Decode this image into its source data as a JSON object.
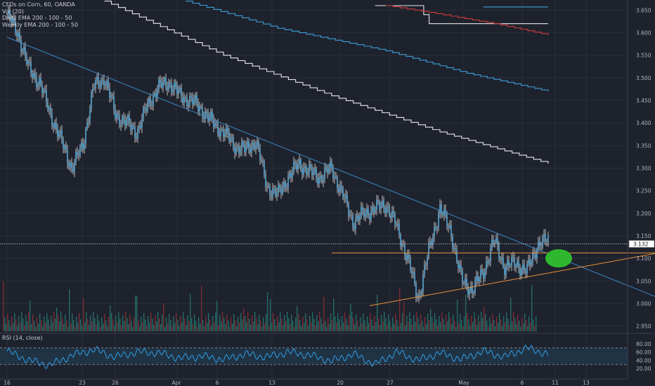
{
  "legend": {
    "symbol": "CFDs on Corn, 60, OANDA",
    "volume": "Vol (20)",
    "daily_ema": "Daily EMA 200 - 100 - 50",
    "weekly_ema": "Weekly EMA 200 - 100 - 50"
  },
  "rsi_legend": "RSI (14, close)",
  "colors": {
    "background": "#1e222d",
    "candle_body": "#5aa9d6",
    "candle_wick": "#e0e0e0",
    "trendline": "#3d88c2",
    "support": "#e8923a",
    "ema_white": "#e6e6e6",
    "ema_blue": "#3c9fd8",
    "ema_red": "#d43b3b",
    "marker": "#2fb72f",
    "rsi_line": "#2f9ee8",
    "rsi_band": "#20384a",
    "volume_up": "#26786e",
    "volume_down": "#8b2e35"
  },
  "chart_data": {
    "type": "line",
    "title": "CFDs on Corn, 60, OANDA",
    "x_tick_labels": [
      "16",
      "23",
      "26",
      "Apr",
      "6",
      "13",
      "20",
      "27",
      "May",
      "6",
      "11",
      "13"
    ],
    "y_tick_labels": [
      "3.650",
      "3.600",
      "3.550",
      "3.500",
      "3.450",
      "3.400",
      "3.350",
      "3.300",
      "3.250",
      "3.200",
      "3.150",
      "3.100",
      "3.050",
      "3.000",
      "2.950"
    ],
    "ylim": [
      2.94,
      3.66
    ],
    "last_price": "3.132",
    "price_series": {
      "name": "CFDs on Corn",
      "x": [
        0,
        2,
        4,
        6,
        8,
        10,
        12,
        14,
        16,
        18,
        20,
        22,
        24,
        26,
        28,
        30,
        32,
        34,
        36,
        38,
        40,
        42,
        44,
        46,
        48,
        50,
        52,
        54,
        56,
        58,
        60,
        62,
        64,
        66,
        68,
        70,
        72,
        74,
        76,
        78,
        80,
        82,
        84,
        86,
        88,
        90,
        92,
        94,
        96,
        98,
        100
      ],
      "values": [
        3.64,
        3.6,
        3.52,
        3.49,
        3.42,
        3.36,
        3.3,
        3.35,
        3.48,
        3.5,
        3.42,
        3.4,
        3.38,
        3.44,
        3.48,
        3.49,
        3.46,
        3.45,
        3.43,
        3.4,
        3.38,
        3.35,
        3.34,
        3.36,
        3.26,
        3.24,
        3.28,
        3.31,
        3.29,
        3.28,
        3.3,
        3.24,
        3.18,
        3.2,
        3.21,
        3.22,
        3.17,
        3.1,
        3.01,
        3.12,
        3.21,
        3.16,
        3.05,
        3.03,
        3.07,
        3.14,
        3.08,
        3.09,
        3.07,
        3.13,
        3.14
      ]
    },
    "trendline": {
      "name": "Downtrend line",
      "x": [
        0,
        123
      ],
      "values": [
        3.59,
        3.0
      ]
    },
    "support_line": {
      "name": "Rising support",
      "x": [
        67,
        124
      ],
      "values": [
        2.995,
        3.12
      ]
    },
    "resistance_line": {
      "name": "Horizontal level",
      "x": [
        60,
        124
      ],
      "values": [
        3.112,
        3.112
      ]
    },
    "ema_lines": [
      {
        "name": "EMA white",
        "color": "#e6e6e6",
        "x": [
          18,
          40,
          60,
          80,
          100
        ],
        "values": [
          3.67,
          3.55,
          3.46,
          3.38,
          3.31
        ]
      },
      {
        "name": "EMA blue",
        "color": "#3c9fd8",
        "x": [
          33,
          50,
          70,
          85,
          100
        ],
        "values": [
          3.67,
          3.61,
          3.56,
          3.51,
          3.47
        ]
      },
      {
        "name": "EMA white 2",
        "color": "#e6e6e6",
        "x": [
          68,
          76,
          78,
          100
        ],
        "values": [
          3.66,
          3.66,
          3.62,
          3.62
        ]
      },
      {
        "name": "EMA red",
        "color": "#d43b3b",
        "x": [
          70,
          78,
          90,
          100
        ],
        "values": [
          3.66,
          3.645,
          3.62,
          3.595
        ]
      },
      {
        "name": "EMA blue 2",
        "color": "#3c9fd8",
        "x": [
          88,
          100
        ],
        "values": [
          3.657,
          3.657
        ]
      }
    ],
    "rsi": {
      "name": "RSI (14, close)",
      "ylim": [
        0,
        100
      ],
      "y_tick_labels": [
        "80.00",
        "60.00",
        "40.00",
        "20.00"
      ],
      "band": [
        30,
        70
      ],
      "x": [
        0,
        4,
        8,
        12,
        16,
        20,
        24,
        28,
        32,
        36,
        40,
        44,
        48,
        52,
        56,
        60,
        64,
        68,
        72,
        76,
        80,
        84,
        88,
        92,
        96,
        100
      ],
      "values": [
        62,
        40,
        28,
        52,
        66,
        48,
        60,
        58,
        45,
        50,
        42,
        55,
        48,
        60,
        52,
        38,
        55,
        30,
        60,
        40,
        58,
        42,
        62,
        48,
        70,
        55
      ]
    },
    "marker": {
      "name": "Target ellipse",
      "x": 105,
      "value": 3.1
    }
  }
}
